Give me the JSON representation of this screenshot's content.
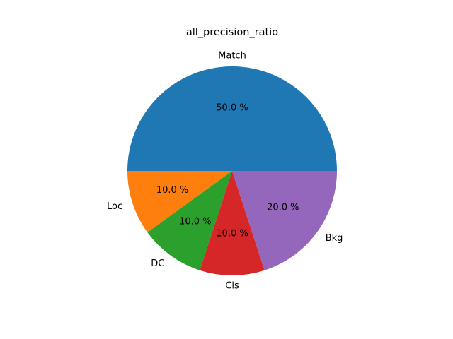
{
  "chart_data": {
    "type": "pie",
    "title": "all_precision_ratio",
    "slices": [
      {
        "label": "Match",
        "value": 50.0,
        "pct_label": "50.0 %",
        "color": "#1f77b4"
      },
      {
        "label": "Loc",
        "value": 10.0,
        "pct_label": "10.0 %",
        "color": "#ff7f0e"
      },
      {
        "label": "DC",
        "value": 10.0,
        "pct_label": "10.0 %",
        "color": "#2ca02c"
      },
      {
        "label": "Cls",
        "value": 10.0,
        "pct_label": "10.0 %",
        "color": "#d62728"
      },
      {
        "label": "Bkg",
        "value": 20.0,
        "pct_label": "20.0 %",
        "color": "#9467bd"
      }
    ],
    "start_angle_deg": 0,
    "direction": "counterclockwise"
  }
}
